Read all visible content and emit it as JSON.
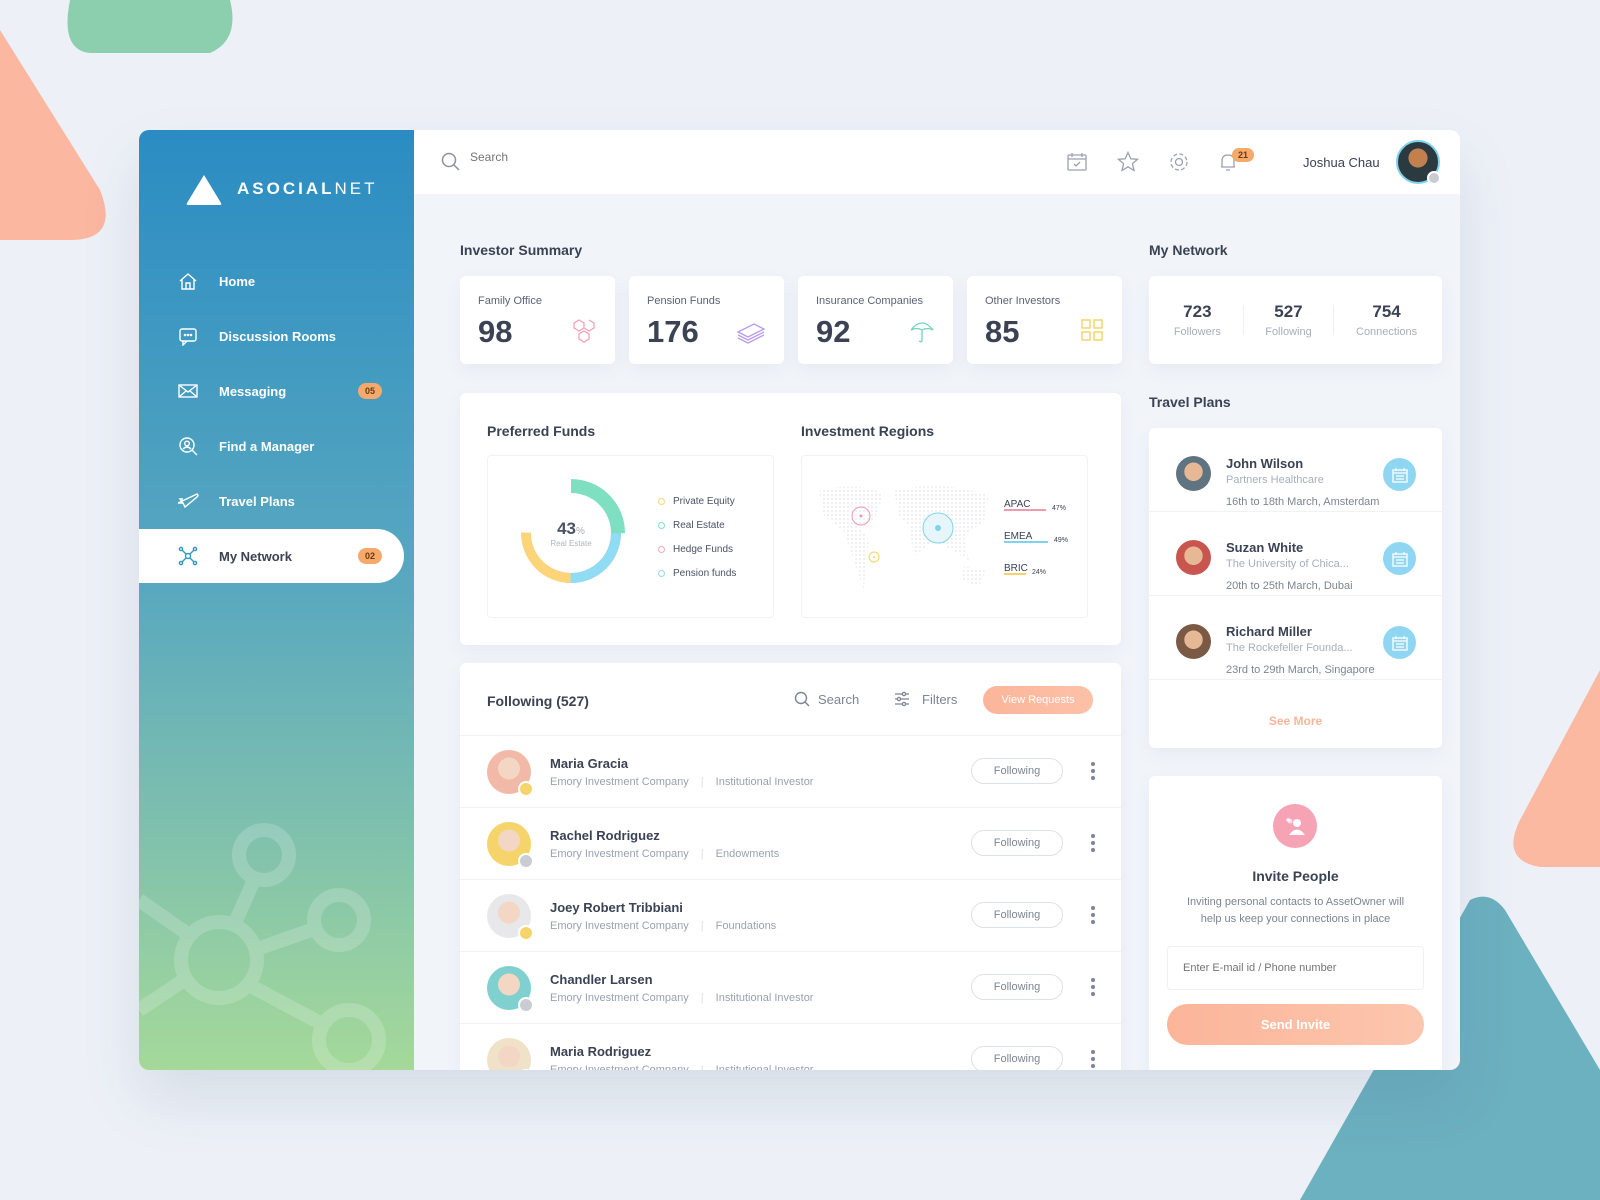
{
  "brand": {
    "name_bold": "ASOCIAL",
    "name_light": "NET"
  },
  "sidebar": {
    "items": [
      {
        "label": "Home",
        "icon": "home-icon"
      },
      {
        "label": "Discussion Rooms",
        "icon": "chat-icon"
      },
      {
        "label": "Messaging",
        "icon": "mail-icon",
        "badge": "05"
      },
      {
        "label": "Find a Manager",
        "icon": "search-user-icon"
      },
      {
        "label": "Travel Plans",
        "icon": "plane-icon"
      },
      {
        "label": "My Network",
        "icon": "network-icon",
        "badge": "02",
        "active": true
      }
    ]
  },
  "header": {
    "search_placeholder": "Search",
    "notifications": "21",
    "user": "Joshua Chau"
  },
  "investor_summary": {
    "title": "Investor Summary",
    "cards": [
      {
        "label": "Family Office",
        "value": "98",
        "color": "#f3a0b4"
      },
      {
        "label": "Pension Funds",
        "value": "176",
        "color": "#b79cf0"
      },
      {
        "label": "Insurance Companies",
        "value": "92",
        "color": "#6fd6b8"
      },
      {
        "label": "Other Investors",
        "value": "85",
        "color": "#f3d35f"
      }
    ]
  },
  "preferred_funds": {
    "title": "Preferred Funds",
    "center_value": "43",
    "center_unit": "%",
    "center_label": "Real Estate",
    "legend": [
      {
        "label": "Private Equity",
        "color": "#fcd47a"
      },
      {
        "label": "Real Estate",
        "color": "#7ee0c0"
      },
      {
        "label": "Hedge Funds",
        "color": "#f6a8bb"
      },
      {
        "label": "Pension funds",
        "color": "#8fdcf4"
      }
    ]
  },
  "regions": {
    "title": "Investment Regions",
    "items": [
      {
        "label": "APAC",
        "value": "47%",
        "color": "#f09aae"
      },
      {
        "label": "EMEA",
        "value": "49%",
        "color": "#7fd3ec"
      },
      {
        "label": "BRIC",
        "value": "24%",
        "color": "#f7d26a"
      }
    ]
  },
  "following": {
    "title": "Following (527)",
    "search": "Search",
    "filters": "Filters",
    "view_requests": "View Requests",
    "button": "Following",
    "rows": [
      {
        "name": "Maria Gracia",
        "company": "Emory Investment Company",
        "type": "Institutional Investor",
        "bg": "#f2b8a8",
        "medal": "#f5d56b"
      },
      {
        "name": "Rachel Rodriguez",
        "company": "Emory Investment Company",
        "type": "Endowments",
        "bg": "#f5d56b",
        "medal": "#c9ccd3"
      },
      {
        "name": "Joey Robert Tribbiani",
        "company": "Emory Investment Company",
        "type": "Foundations",
        "bg": "#e8e8ea",
        "medal": "#f5d56b"
      },
      {
        "name": "Chandler Larsen",
        "company": "Emory Investment Company",
        "type": "Institutional Investor",
        "bg": "#7fd0cf",
        "medal": "#c9ccd3"
      },
      {
        "name": "Maria Rodriguez",
        "company": "Emory Investment Company",
        "type": "Institutional Investor",
        "bg": "#efe2c8",
        "medal": "#c9ccd3"
      }
    ]
  },
  "network": {
    "title": "My Network",
    "stats": [
      {
        "value": "723",
        "label": "Followers"
      },
      {
        "value": "527",
        "label": "Following"
      },
      {
        "value": "754",
        "label": "Connections"
      }
    ]
  },
  "travel": {
    "title": "Travel Plans",
    "see_more": "See More",
    "items": [
      {
        "name": "John Wilson",
        "org": "Partners Healthcare",
        "dates": "16th to 18th March, Amsterdam"
      },
      {
        "name": "Suzan White",
        "org": "The University of Chica...",
        "dates": "20th to 25th March, Dubai"
      },
      {
        "name": "Richard Miller",
        "org": "The Rockefeller Founda...",
        "dates": "23rd to 29th March, Singapore"
      }
    ]
  },
  "invite": {
    "title": "Invite People",
    "text": "Inviting personal contacts to AssetOwner will help us keep your connections in place",
    "placeholder": "Enter E-mail id / Phone number",
    "button": "Send Invite"
  }
}
